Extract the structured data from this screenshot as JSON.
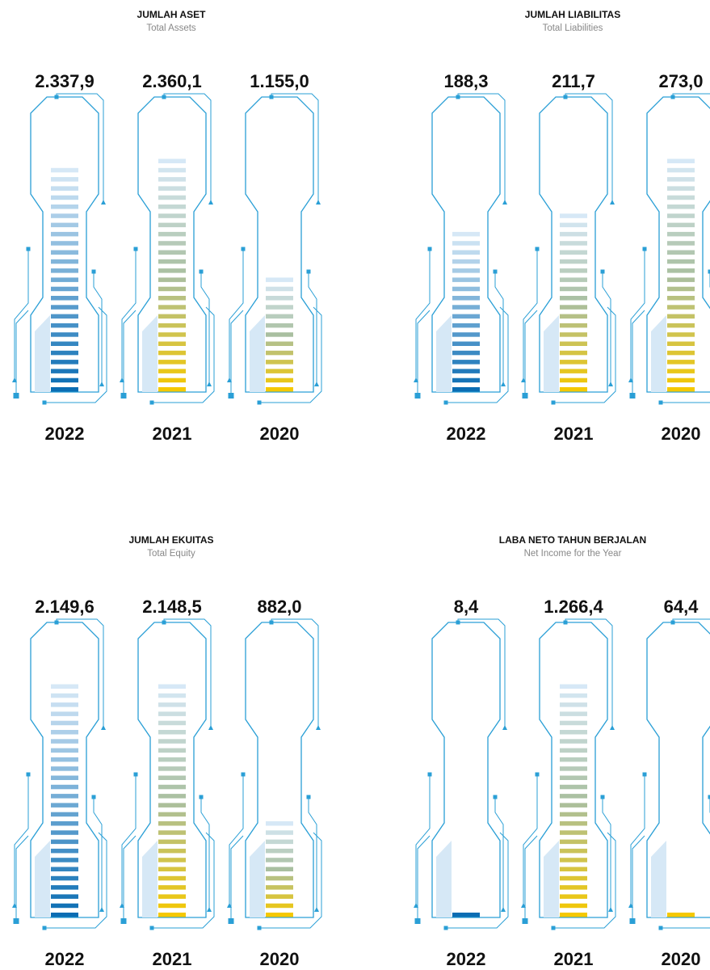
{
  "chart_data": [
    {
      "type": "stripe-bar",
      "title": "JUMLAH ASET",
      "subtitle": "Total Assets",
      "categories": [
        "2022",
        "2021",
        "2020"
      ],
      "values": [
        2337.9,
        2360.1,
        1155.0
      ],
      "value_labels": [
        "2.337,9",
        "2.360,1",
        "1.155,0"
      ],
      "colors": [
        [
          "#0b6db3",
          "#d6e8f6"
        ],
        [
          "#f5c800",
          "#d6e8f6"
        ],
        [
          "#f5c800",
          "#d6e8f6"
        ]
      ]
    },
    {
      "type": "stripe-bar",
      "title": "JUMLAH LIABILITAS",
      "subtitle": "Total Liabilities",
      "categories": [
        "2022",
        "2021",
        "2020"
      ],
      "values": [
        188.3,
        211.7,
        273.0
      ],
      "value_labels": [
        "188,3",
        "211,7",
        "273,0"
      ],
      "colors": [
        [
          "#0b6db3",
          "#d6e8f6"
        ],
        [
          "#f5c800",
          "#d6e8f6"
        ],
        [
          "#f5c800",
          "#d6e8f6"
        ]
      ]
    },
    {
      "type": "stripe-bar",
      "title": "JUMLAH EKUITAS",
      "subtitle": "Total Equity",
      "categories": [
        "2022",
        "2021",
        "2020"
      ],
      "values": [
        2149.6,
        2148.5,
        882.0
      ],
      "value_labels": [
        "2.149,6",
        "2.148,5",
        "882,0"
      ],
      "colors": [
        [
          "#0b6db3",
          "#d6e8f6"
        ],
        [
          "#f5c800",
          "#d6e8f6"
        ],
        [
          "#f5c800",
          "#d6e8f6"
        ]
      ]
    },
    {
      "type": "stripe-bar",
      "title": "LABA NETO TAHUN BERJALAN",
      "subtitle": "Net Income for the Year",
      "categories": [
        "2022",
        "2021",
        "2020"
      ],
      "values": [
        8.4,
        1266.4,
        64.4
      ],
      "value_labels": [
        "8,4",
        "1.266,4",
        "64,4"
      ],
      "colors": [
        [
          "#0b6db3",
          "#d6e8f6"
        ],
        [
          "#f5c800",
          "#d6e8f6"
        ],
        [
          "#f5c800",
          "#d6e8f6"
        ]
      ]
    }
  ]
}
